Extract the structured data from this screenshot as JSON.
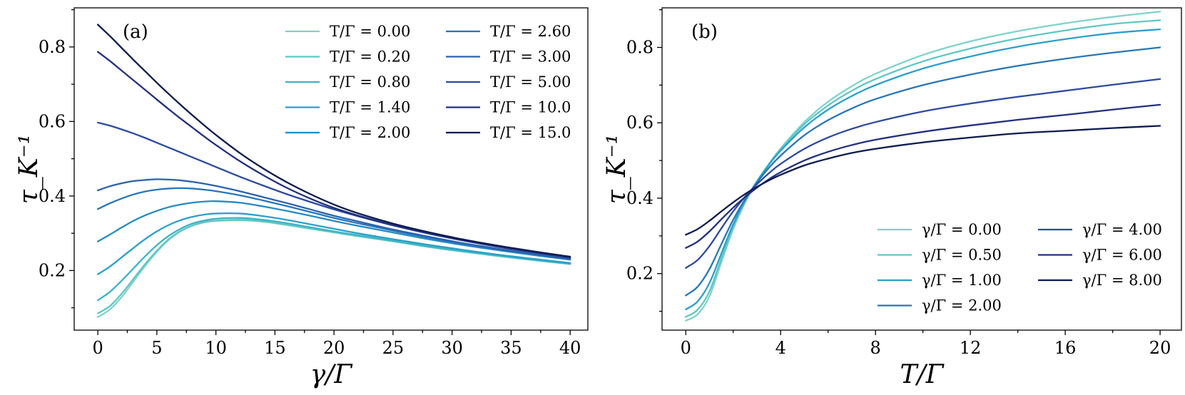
{
  "chart_data": [
    {
      "type": "line",
      "panel_label": "(a)",
      "xlabel": "γ/Γ",
      "ylabel": "τ_K⁻¹",
      "xlim": [
        -2,
        41.5
      ],
      "ylim": [
        0.04,
        0.905
      ],
      "xticks": [
        0,
        5,
        10,
        15,
        20,
        25,
        30,
        35,
        40
      ],
      "xtick_labels": [
        "0",
        "5",
        "10",
        "15",
        "20",
        "25",
        "30",
        "35",
        "40"
      ],
      "yticks": [
        0.2,
        0.4,
        0.6,
        0.8
      ],
      "ytick_labels": [
        "0.2",
        "0.4",
        "0.6",
        "0.8"
      ],
      "legend_location": "upper-right",
      "legend_columns": 2,
      "x": [
        0,
        1,
        2,
        3,
        4,
        5,
        6,
        7,
        8,
        9,
        10,
        12,
        14,
        16,
        18,
        20,
        22,
        25,
        28,
        31,
        34,
        37,
        40
      ],
      "series": [
        {
          "name": "T/Γ = 0.00",
          "label": "T/Γ = 0.00",
          "color": "#7fd3c9",
          "values": [
            0.075,
            0.095,
            0.128,
            0.17,
            0.212,
            0.25,
            0.282,
            0.305,
            0.32,
            0.329,
            0.333,
            0.335,
            0.331,
            0.322,
            0.312,
            0.302,
            0.292,
            0.278,
            0.263,
            0.25,
            0.238,
            0.227,
            0.217
          ]
        },
        {
          "name": "T/Γ = 0.20",
          "label": "T/Γ = 0.20",
          "color": "#5fc7c5",
          "values": [
            0.085,
            0.104,
            0.137,
            0.177,
            0.217,
            0.253,
            0.284,
            0.306,
            0.321,
            0.33,
            0.334,
            0.336,
            0.332,
            0.323,
            0.313,
            0.303,
            0.293,
            0.279,
            0.264,
            0.251,
            0.239,
            0.228,
            0.218
          ]
        },
        {
          "name": "T/Γ = 0.80",
          "label": "T/Γ = 0.80",
          "color": "#3db3c7",
          "values": [
            0.12,
            0.142,
            0.172,
            0.205,
            0.238,
            0.268,
            0.293,
            0.312,
            0.326,
            0.334,
            0.339,
            0.341,
            0.336,
            0.327,
            0.316,
            0.305,
            0.295,
            0.28,
            0.265,
            0.252,
            0.24,
            0.229,
            0.218
          ]
        },
        {
          "name": "T/Γ = 1.40",
          "label": "T/Γ = 1.40",
          "color": "#2aa0cb",
          "values": [
            0.19,
            0.21,
            0.235,
            0.26,
            0.284,
            0.305,
            0.322,
            0.335,
            0.344,
            0.35,
            0.353,
            0.353,
            0.346,
            0.336,
            0.324,
            0.312,
            0.3,
            0.284,
            0.269,
            0.255,
            0.242,
            0.231,
            0.22
          ]
        },
        {
          "name": "T/Γ = 2.00",
          "label": "T/Γ = 2.00",
          "color": "#238bc4",
          "values": [
            0.278,
            0.296,
            0.315,
            0.333,
            0.348,
            0.36,
            0.37,
            0.377,
            0.382,
            0.385,
            0.386,
            0.382,
            0.372,
            0.36,
            0.347,
            0.333,
            0.32,
            0.302,
            0.284,
            0.268,
            0.254,
            0.241,
            0.229
          ]
        },
        {
          "name": "T/Γ = 2.60",
          "label": "T/Γ = 2.60",
          "color": "#2776ba",
          "values": [
            0.365,
            0.38,
            0.393,
            0.404,
            0.412,
            0.417,
            0.42,
            0.421,
            0.42,
            0.417,
            0.413,
            0.402,
            0.388,
            0.373,
            0.357,
            0.341,
            0.327,
            0.307,
            0.288,
            0.271,
            0.256,
            0.243,
            0.23
          ]
        },
        {
          "name": "T/Γ = 3.00",
          "label": "T/Γ = 3.00",
          "color": "#2b62ad",
          "values": [
            0.415,
            0.426,
            0.434,
            0.44,
            0.443,
            0.445,
            0.444,
            0.442,
            0.438,
            0.433,
            0.427,
            0.413,
            0.397,
            0.381,
            0.364,
            0.347,
            0.332,
            0.31,
            0.291,
            0.273,
            0.258,
            0.244,
            0.231
          ]
        },
        {
          "name": "T/Γ = 5.00",
          "label": "T/Γ = 5.00",
          "color": "#2c4a9e",
          "values": [
            0.597,
            0.589,
            0.579,
            0.568,
            0.556,
            0.543,
            0.53,
            0.517,
            0.504,
            0.491,
            0.478,
            0.452,
            0.428,
            0.405,
            0.384,
            0.364,
            0.346,
            0.321,
            0.299,
            0.28,
            0.263,
            0.248,
            0.234
          ]
        },
        {
          "name": "T/Γ = 10.0",
          "label": "T/Γ = 10.0",
          "color": "#23307f",
          "values": [
            0.787,
            0.763,
            0.737,
            0.711,
            0.685,
            0.659,
            0.633,
            0.608,
            0.584,
            0.56,
            0.537,
            0.494,
            0.456,
            0.422,
            0.393,
            0.368,
            0.348,
            0.322,
            0.3,
            0.281,
            0.264,
            0.249,
            0.235
          ]
        },
        {
          "name": "T/Γ = 15.0",
          "label": "T/Γ = 15.0",
          "color": "#0b1b4f",
          "values": [
            0.86,
            0.83,
            0.798,
            0.766,
            0.735,
            0.704,
            0.674,
            0.645,
            0.617,
            0.59,
            0.564,
            0.516,
            0.474,
            0.437,
            0.405,
            0.377,
            0.354,
            0.326,
            0.303,
            0.283,
            0.266,
            0.251,
            0.237
          ]
        }
      ]
    },
    {
      "type": "line",
      "panel_label": "(b)",
      "xlabel": "T/Γ",
      "ylabel": "τ_K⁻¹",
      "xlim": [
        -1,
        20.9
      ],
      "ylim": [
        0.05,
        0.905
      ],
      "xticks": [
        0,
        4,
        8,
        12,
        16,
        20
      ],
      "xtick_labels": [
        "0",
        "4",
        "8",
        "12",
        "16",
        "20"
      ],
      "yticks": [
        0.2,
        0.4,
        0.6,
        0.8
      ],
      "ytick_labels": [
        "0.2",
        "0.4",
        "0.6",
        "0.8"
      ],
      "legend_location": "lower-right",
      "legend_columns": 2,
      "x": [
        0,
        0.5,
        1,
        1.5,
        2,
        2.5,
        3,
        3.5,
        4,
        5,
        6,
        7,
        8,
        10,
        12,
        14,
        16,
        18,
        20
      ],
      "series": [
        {
          "name": "γ/Γ = 0.00",
          "label": "γ/Γ = 0.00",
          "color": "#7fd3c9",
          "values": [
            0.075,
            0.092,
            0.14,
            0.23,
            0.318,
            0.388,
            0.443,
            0.49,
            0.532,
            0.602,
            0.656,
            0.697,
            0.73,
            0.78,
            0.816,
            0.843,
            0.864,
            0.881,
            0.895
          ]
        },
        {
          "name": "γ/Γ = 0.50",
          "label": "γ/Γ = 0.50",
          "color": "#5fc7c5",
          "values": [
            0.085,
            0.104,
            0.153,
            0.24,
            0.324,
            0.392,
            0.445,
            0.49,
            0.53,
            0.596,
            0.646,
            0.685,
            0.716,
            0.763,
            0.797,
            0.824,
            0.845,
            0.862,
            0.872
          ]
        },
        {
          "name": "γ/Γ = 1.00",
          "label": "γ/Γ = 1.00",
          "color": "#2aa0cb",
          "values": [
            0.105,
            0.126,
            0.175,
            0.253,
            0.331,
            0.394,
            0.444,
            0.488,
            0.526,
            0.588,
            0.635,
            0.671,
            0.7,
            0.744,
            0.776,
            0.802,
            0.822,
            0.838,
            0.848
          ]
        },
        {
          "name": "γ/Γ = 2.00",
          "label": "γ/Γ = 2.00",
          "color": "#2776ba",
          "values": [
            0.142,
            0.165,
            0.212,
            0.278,
            0.343,
            0.397,
            0.441,
            0.48,
            0.513,
            0.567,
            0.607,
            0.638,
            0.663,
            0.7,
            0.728,
            0.751,
            0.77,
            0.786,
            0.8
          ]
        },
        {
          "name": "γ/Γ = 4.00",
          "label": "γ/Γ = 4.00",
          "color": "#2c4a9e",
          "values": [
            0.215,
            0.236,
            0.273,
            0.32,
            0.365,
            0.404,
            0.437,
            0.466,
            0.491,
            0.531,
            0.561,
            0.584,
            0.602,
            0.63,
            0.651,
            0.669,
            0.685,
            0.701,
            0.716
          ]
        },
        {
          "name": "γ/Γ = 6.00",
          "label": "γ/Γ = 6.00",
          "color": "#23307f",
          "values": [
            0.268,
            0.285,
            0.312,
            0.344,
            0.375,
            0.403,
            0.428,
            0.45,
            0.469,
            0.5,
            0.523,
            0.541,
            0.555,
            0.576,
            0.593,
            0.608,
            0.621,
            0.635,
            0.648
          ]
        },
        {
          "name": "γ/Γ = 8.00",
          "label": "γ/Γ = 8.00",
          "color": "#0b1b4f",
          "values": [
            0.303,
            0.318,
            0.34,
            0.365,
            0.389,
            0.411,
            0.43,
            0.447,
            0.462,
            0.487,
            0.505,
            0.52,
            0.531,
            0.548,
            0.561,
            0.572,
            0.579,
            0.586,
            0.592
          ]
        }
      ]
    }
  ]
}
